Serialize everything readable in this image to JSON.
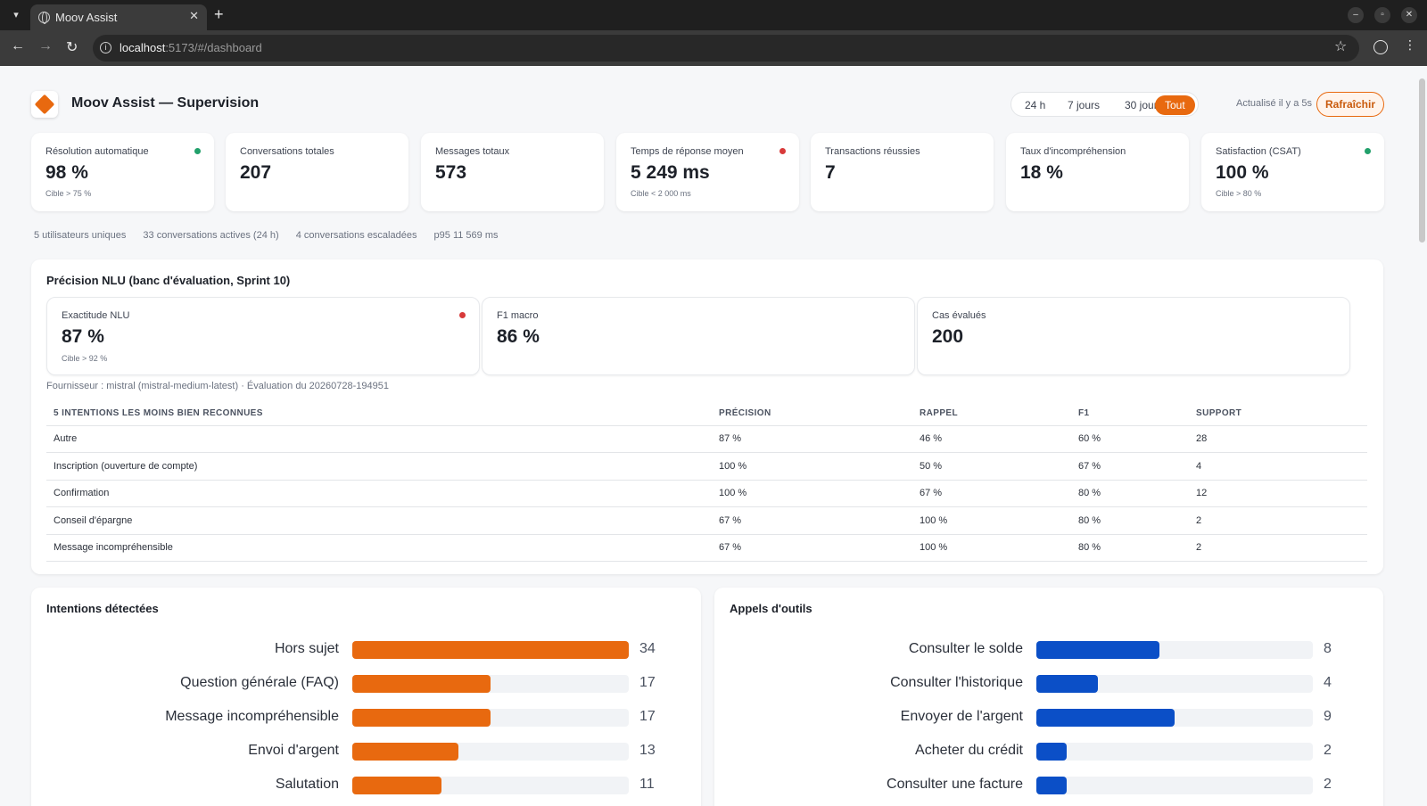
{
  "browser": {
    "tab_title": "Moov Assist",
    "url_host": "localhost",
    "url_rest": ":5173/#/dashboard"
  },
  "header": {
    "title": "Moov Assist — Supervision",
    "periods": [
      "24 h",
      "7 jours",
      "30 jours",
      "Tout"
    ],
    "active_period": "Tout",
    "updated": "Actualisé il y a 5s",
    "refresh_label": "Rafraîchir"
  },
  "kpis": [
    {
      "label": "Résolution automatique",
      "value": "98 %",
      "target": "Cible > 75 %",
      "status": "green"
    },
    {
      "label": "Conversations totales",
      "value": "207",
      "target": "",
      "status": ""
    },
    {
      "label": "Messages totaux",
      "value": "573",
      "target": "",
      "status": ""
    },
    {
      "label": "Temps de réponse moyen",
      "value": "5 249 ms",
      "target": "Cible < 2 000 ms",
      "status": "red"
    },
    {
      "label": "Transactions réussies",
      "value": "7",
      "target": "",
      "status": ""
    },
    {
      "label": "Taux d'incompréhension",
      "value": "18 %",
      "target": "",
      "status": ""
    },
    {
      "label": "Satisfaction (CSAT)",
      "value": "100 %",
      "target": "Cible > 80 %",
      "status": "green"
    }
  ],
  "subline": [
    "5 utilisateurs uniques",
    "33 conversations actives (24 h)",
    "4 conversations escaladées",
    "p95 11 569 ms"
  ],
  "nlu": {
    "title": "Précision NLU (banc d'évaluation, Sprint 10)",
    "kpis": [
      {
        "label": "Exactitude NLU",
        "value": "87 %",
        "target": "Cible > 92 %",
        "status": "red"
      },
      {
        "label": "F1 macro",
        "value": "86 %",
        "target": "",
        "status": ""
      },
      {
        "label": "Cas évalués",
        "value": "200",
        "target": "",
        "status": ""
      }
    ],
    "provider": "Fournisseur : mistral (mistral-medium-latest) · Évaluation du 20260728-194951",
    "columns": [
      "5 INTENTIONS LES MOINS BIEN RECONNUES",
      "PRÉCISION",
      "RAPPEL",
      "F1",
      "SUPPORT"
    ],
    "rows": [
      [
        "Autre",
        "87 %",
        "46 %",
        "60 %",
        "28"
      ],
      [
        "Inscription (ouverture de compte)",
        "100 %",
        "50 %",
        "67 %",
        "4"
      ],
      [
        "Confirmation",
        "100 %",
        "67 %",
        "80 %",
        "12"
      ],
      [
        "Conseil d'épargne",
        "67 %",
        "100 %",
        "80 %",
        "2"
      ],
      [
        "Message incompréhensible",
        "67 %",
        "100 %",
        "80 %",
        "2"
      ]
    ]
  },
  "intents_chart": {
    "title": "Intentions détectées",
    "color": "#e8690f",
    "max": 34,
    "items": [
      {
        "label": "Hors sujet",
        "value": 34
      },
      {
        "label": "Question générale (FAQ)",
        "value": 17
      },
      {
        "label": "Message incompréhensible",
        "value": 17
      },
      {
        "label": "Envoi d'argent",
        "value": 13
      },
      {
        "label": "Salutation",
        "value": 11
      }
    ]
  },
  "tools_chart": {
    "title": "Appels d'outils",
    "color": "#0b4fc7",
    "max": 18,
    "items": [
      {
        "label": "Consulter le solde",
        "value": 8
      },
      {
        "label": "Consulter l'historique",
        "value": 4
      },
      {
        "label": "Envoyer de l'argent",
        "value": 9
      },
      {
        "label": "Acheter du crédit",
        "value": 2
      },
      {
        "label": "Consulter une facture",
        "value": 2
      }
    ]
  }
}
